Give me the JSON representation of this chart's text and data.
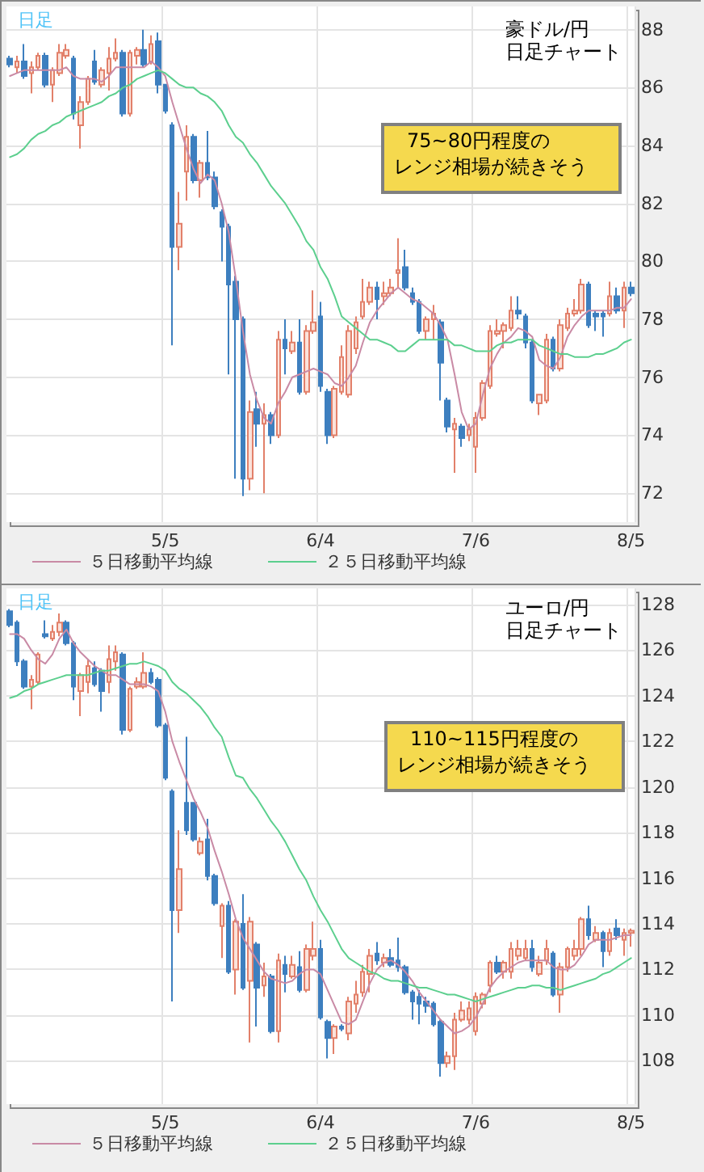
{
  "chart_data": [
    {
      "type": "candlestick",
      "title": "豪ドル/円",
      "subtitle": "日足チャート",
      "annotations": [
        "日足",
        "75~80円程度の",
        "レンジ相場が続きそう"
      ],
      "categories": [
        null,
        null,
        null,
        null,
        null,
        null,
        null,
        null,
        null,
        null,
        null,
        null,
        null,
        null,
        null,
        null,
        null,
        null,
        null,
        null,
        null,
        null,
        "5/5",
        null,
        null,
        null,
        null,
        null,
        null,
        null,
        null,
        null,
        null,
        null,
        null,
        null,
        null,
        null,
        null,
        null,
        null,
        null,
        null,
        null,
        "6/4",
        null,
        null,
        null,
        null,
        null,
        null,
        null,
        null,
        null,
        null,
        null,
        null,
        null,
        null,
        null,
        null,
        null,
        null,
        null,
        null,
        null,
        "7/6",
        null,
        null,
        null,
        null,
        null,
        null,
        null,
        null,
        null,
        null,
        null,
        null,
        null,
        null,
        null,
        null,
        null,
        null,
        null,
        null,
        null,
        "8/5"
      ],
      "ylim": [
        71,
        88.8
      ],
      "yticks": [
        72,
        74,
        76,
        78,
        80,
        82,
        84,
        86,
        88
      ],
      "grid": true,
      "legend": "bottom",
      "marker": "none",
      "series": [
        {
          "type": "candlestick",
          "ohlc": [
            [
              87.0,
              87.1,
              86.7,
              86.8
            ],
            [
              86.7,
              87.1,
              86.5,
              86.9
            ],
            [
              86.9,
              87.5,
              86.3,
              86.4
            ],
            [
              86.5,
              86.9,
              85.8,
              86.7
            ],
            [
              86.7,
              87.2,
              86.6,
              87.1
            ],
            [
              87.1,
              87.2,
              86.0,
              86.1
            ],
            [
              86.1,
              86.7,
              85.5,
              86.6
            ],
            [
              86.5,
              87.5,
              86.4,
              87.2
            ],
            [
              87.1,
              87.5,
              87.0,
              87.3
            ],
            [
              87.0,
              87.1,
              84.9,
              85.1
            ],
            [
              84.7,
              85.7,
              83.9,
              85.5
            ],
            [
              85.5,
              86.4,
              85.4,
              86.3
            ],
            [
              86.9,
              87.3,
              86.1,
              86.2
            ],
            [
              86.1,
              86.7,
              86.0,
              86.6
            ],
            [
              86.5,
              87.4,
              85.9,
              87.0
            ],
            [
              87.0,
              87.7,
              86.9,
              87.2
            ],
            [
              87.2,
              87.3,
              85.0,
              85.1
            ],
            [
              85.1,
              87.3,
              85.0,
              87.2
            ],
            [
              87.1,
              87.4,
              86.8,
              87.3
            ],
            [
              87.3,
              88.0,
              86.7,
              86.8
            ],
            [
              86.9,
              87.8,
              86.8,
              87.5
            ],
            [
              87.6,
              87.9,
              85.8,
              86.1
            ],
            [
              86.1,
              86.1,
              85.1,
              85.2
            ],
            [
              84.7,
              84.8,
              77.1,
              80.5
            ],
            [
              80.5,
              82.4,
              79.7,
              81.3
            ],
            [
              83.1,
              84.7,
              82.1,
              84.3
            ],
            [
              84.3,
              84.4,
              82.7,
              82.8
            ],
            [
              82.8,
              83.5,
              82.2,
              83.4
            ],
            [
              83.4,
              84.5,
              82.8,
              82.9
            ],
            [
              82.9,
              83.1,
              81.8,
              81.9
            ],
            [
              81.7,
              81.8,
              80.0,
              81.2
            ],
            [
              81.2,
              81.3,
              76.1,
              79.2
            ],
            [
              79.3,
              79.5,
              72.5,
              78.0
            ],
            [
              78.0,
              78.1,
              71.9,
              72.5
            ],
            [
              72.5,
              75.2,
              72.1,
              74.8
            ],
            [
              74.9,
              75.5,
              73.6,
              74.4
            ],
            [
              74.4,
              75.1,
              72.0,
              74.7
            ],
            [
              74.7,
              74.8,
              73.7,
              74.0
            ],
            [
              74.0,
              77.6,
              73.9,
              77.3
            ],
            [
              77.3,
              78.0,
              76.1,
              77.0
            ],
            [
              76.9,
              77.6,
              76.8,
              77.2
            ],
            [
              77.2,
              78.0,
              75.4,
              75.5
            ],
            [
              75.5,
              77.8,
              75.4,
              77.6
            ],
            [
              77.6,
              79.0,
              77.5,
              77.9
            ],
            [
              78.1,
              78.6,
              75.5,
              75.7
            ],
            [
              75.5,
              75.6,
              73.7,
              74.0
            ],
            [
              74.0,
              75.7,
              73.9,
              75.6
            ],
            [
              75.5,
              77.1,
              75.4,
              76.7
            ],
            [
              75.4,
              77.8,
              75.3,
              77.6
            ],
            [
              77.0,
              78.1,
              76.8,
              77.9
            ],
            [
              78.1,
              79.4,
              78.0,
              78.6
            ],
            [
              78.6,
              79.3,
              78.5,
              79.1
            ],
            [
              79.1,
              79.3,
              78.0,
              78.7
            ],
            [
              78.8,
              79.3,
              78.5,
              78.9
            ],
            [
              78.9,
              79.4,
              78.8,
              79.1
            ],
            [
              79.6,
              80.8,
              79.1,
              79.7
            ],
            [
              79.8,
              80.4,
              79.0,
              79.1
            ],
            [
              78.9,
              79.1,
              78.5,
              78.6
            ],
            [
              78.6,
              78.7,
              77.5,
              77.6
            ],
            [
              77.6,
              78.1,
              77.3,
              78.0
            ],
            [
              78.0,
              78.5,
              77.3,
              78.2
            ],
            [
              77.9,
              78.0,
              75.2,
              76.5
            ],
            [
              75.2,
              75.3,
              74.1,
              74.3
            ],
            [
              74.2,
              74.6,
              72.7,
              74.4
            ],
            [
              74.3,
              74.4,
              73.6,
              73.9
            ],
            [
              74.0,
              74.4,
              73.8,
              74.2
            ],
            [
              73.6,
              74.8,
              72.7,
              74.6
            ],
            [
              74.6,
              75.9,
              74.5,
              75.8
            ],
            [
              75.7,
              77.8,
              75.6,
              77.6
            ],
            [
              77.5,
              78.0,
              77.4,
              77.6
            ],
            [
              77.6,
              77.9,
              77.0,
              77.8
            ],
            [
              77.7,
              78.8,
              77.6,
              78.3
            ],
            [
              78.3,
              78.8,
              78.0,
              78.2
            ],
            [
              78.1,
              78.2,
              77.0,
              77.2
            ],
            [
              77.2,
              77.3,
              75.1,
              75.2
            ],
            [
              75.1,
              75.4,
              74.7,
              75.4
            ],
            [
              75.2,
              77.5,
              75.1,
              77.3
            ],
            [
              77.3,
              77.4,
              76.2,
              76.3
            ],
            [
              76.3,
              78.0,
              76.2,
              77.8
            ],
            [
              77.7,
              78.4,
              77.6,
              78.2
            ],
            [
              78.2,
              78.7,
              78.1,
              78.3
            ],
            [
              78.3,
              79.4,
              78.2,
              79.2
            ],
            [
              79.2,
              79.3,
              77.7,
              77.8
            ],
            [
              78.2,
              78.3,
              77.6,
              78.1
            ],
            [
              78.2,
              78.3,
              77.4,
              78.1
            ],
            [
              78.2,
              79.3,
              78.1,
              78.8
            ],
            [
              78.8,
              79.1,
              78.2,
              78.3
            ],
            [
              78.3,
              79.3,
              77.7,
              79.1
            ],
            [
              79.1,
              79.3,
              78.8,
              78.9
            ]
          ]
        },
        {
          "type": "line",
          "name": "５日移動平均線",
          "color": "#c98aa5",
          "values": [
            86.4,
            86.5,
            86.6,
            86.6,
            86.6,
            86.6,
            86.6,
            86.6,
            86.7,
            86.4,
            86.3,
            86.3,
            86.3,
            86.2,
            86.4,
            86.7,
            86.7,
            86.7,
            86.7,
            86.7,
            86.9,
            86.7,
            86.4,
            85.5,
            84.7,
            83.9,
            83.2,
            82.7,
            83.0,
            82.8,
            82.0,
            81.0,
            79.4,
            77.6,
            76.1,
            75.2,
            74.6,
            74.4,
            75.1,
            75.5,
            76.0,
            76.1,
            76.2,
            76.3,
            76.2,
            76.1,
            75.8,
            75.7,
            76.0,
            76.4,
            77.2,
            77.9,
            78.3,
            78.6,
            78.9,
            79.1,
            78.9,
            78.7,
            78.6,
            78.4,
            78.2,
            77.8,
            77.3,
            76.1,
            74.8,
            74.2,
            74.4,
            75.4,
            76.3,
            76.8,
            77.2,
            77.4,
            77.7,
            77.6,
            77.4,
            76.6,
            76.4,
            76.3,
            76.7,
            77.4,
            77.8,
            78.1,
            78.3,
            78.3,
            78.3,
            78.3,
            78.4,
            78.4,
            78.7
          ]
        },
        {
          "type": "line",
          "name": "２５日移動平均線",
          "color": "#5ccf8e",
          "values": [
            83.6,
            83.7,
            83.9,
            84.2,
            84.4,
            84.5,
            84.7,
            84.8,
            85.0,
            85.1,
            85.2,
            85.3,
            85.4,
            85.5,
            85.7,
            85.8,
            86.0,
            86.1,
            86.3,
            86.4,
            86.5,
            86.6,
            86.5,
            86.3,
            86.1,
            86.0,
            86.0,
            85.8,
            85.7,
            85.5,
            85.2,
            84.7,
            84.3,
            84.1,
            83.7,
            83.4,
            83.0,
            82.6,
            82.3,
            82.0,
            81.6,
            81.2,
            80.7,
            80.4,
            79.8,
            79.4,
            78.8,
            78.1,
            77.9,
            77.7,
            77.5,
            77.3,
            77.3,
            77.2,
            77.1,
            76.9,
            76.9,
            77.1,
            77.3,
            77.3,
            77.3,
            77.3,
            77.3,
            77.1,
            77.1,
            77.0,
            76.9,
            76.9,
            76.9,
            77.1,
            77.2,
            77.2,
            77.3,
            77.3,
            77.3,
            77.1,
            77.0,
            76.9,
            76.8,
            76.8,
            76.7,
            76.7,
            76.7,
            76.8,
            76.8,
            76.9,
            77.0,
            77.2,
            77.3
          ]
        }
      ]
    },
    {
      "type": "candlestick",
      "title": "ユーロ/円",
      "subtitle": "日足チャート",
      "annotations": [
        "日足",
        "110~115円程度の",
        "レンジ相場が続きそう"
      ],
      "categories": [
        null,
        null,
        null,
        null,
        null,
        null,
        null,
        null,
        null,
        null,
        null,
        null,
        null,
        null,
        null,
        null,
        null,
        null,
        null,
        null,
        null,
        null,
        "5/5",
        null,
        null,
        null,
        null,
        null,
        null,
        null,
        null,
        null,
        null,
        null,
        null,
        null,
        null,
        null,
        null,
        null,
        null,
        null,
        null,
        null,
        "6/4",
        null,
        null,
        null,
        null,
        null,
        null,
        null,
        null,
        null,
        null,
        null,
        null,
        null,
        null,
        null,
        null,
        null,
        null,
        null,
        null,
        null,
        "7/6",
        null,
        null,
        null,
        null,
        null,
        null,
        null,
        null,
        null,
        null,
        null,
        null,
        null,
        null,
        null,
        null,
        null,
        null,
        null,
        null,
        null,
        "8/5"
      ],
      "ylim": [
        106.1,
        128.7
      ],
      "yticks": [
        108,
        110,
        112,
        114,
        116,
        118,
        120,
        122,
        124,
        126,
        128
      ],
      "grid": true,
      "legend": "bottom",
      "marker": "none",
      "series": [
        {
          "type": "candlestick",
          "ohlc": [
            [
              127.7,
              127.8,
              127.0,
              127.1
            ],
            [
              127.2,
              127.3,
              125.3,
              125.5
            ],
            [
              125.5,
              125.6,
              124.3,
              124.4
            ],
            [
              124.4,
              124.9,
              123.4,
              124.7
            ],
            [
              124.6,
              125.9,
              124.5,
              125.8
            ],
            [
              126.7,
              127.3,
              126.5,
              126.6
            ],
            [
              126.5,
              127.1,
              126.4,
              126.8
            ],
            [
              126.8,
              127.6,
              126.6,
              127.2
            ],
            [
              127.2,
              127.3,
              126.2,
              126.3
            ],
            [
              126.3,
              126.4,
              123.8,
              124.4
            ],
            [
              124.2,
              125.0,
              123.1,
              124.9
            ],
            [
              124.6,
              125.6,
              124.1,
              125.3
            ],
            [
              125.2,
              125.5,
              124.4,
              124.5
            ],
            [
              125.1,
              125.2,
              123.3,
              124.2
            ],
            [
              124.6,
              126.2,
              124.1,
              125.6
            ],
            [
              125.5,
              126.2,
              125.1,
              125.9
            ],
            [
              125.8,
              125.9,
              122.3,
              122.5
            ],
            [
              122.5,
              124.4,
              122.4,
              124.3
            ],
            [
              124.4,
              124.8,
              124.3,
              124.6
            ],
            [
              124.4,
              125.9,
              124.3,
              125.0
            ],
            [
              125.0,
              125.2,
              124.5,
              124.6
            ],
            [
              124.7,
              124.8,
              122.6,
              122.7
            ],
            [
              122.7,
              122.8,
              120.3,
              120.4
            ],
            [
              119.8,
              119.9,
              110.6,
              114.6
            ],
            [
              114.6,
              118.1,
              113.6,
              116.4
            ],
            [
              119.3,
              122.2,
              117.9,
              118.1
            ],
            [
              119.3,
              119.3,
              117.6,
              117.7
            ],
            [
              117.1,
              117.8,
              117.0,
              117.6
            ],
            [
              117.7,
              118.6,
              115.9,
              116.1
            ],
            [
              116.1,
              116.2,
              114.8,
              114.9
            ],
            [
              113.9,
              114.9,
              112.5,
              114.8
            ],
            [
              114.8,
              115.0,
              111.8,
              111.9
            ],
            [
              112.0,
              114.2,
              110.9,
              114.1
            ],
            [
              114.0,
              115.3,
              111.1,
              111.2
            ],
            [
              111.5,
              114.3,
              108.8,
              114.1
            ],
            [
              113.1,
              113.2,
              109.5,
              111.2
            ],
            [
              111.3,
              112.3,
              110.8,
              111.7
            ],
            [
              111.7,
              111.8,
              109.2,
              109.3
            ],
            [
              109.3,
              112.7,
              108.8,
              112.4
            ],
            [
              112.2,
              112.6,
              111.0,
              111.8
            ],
            [
              111.7,
              112.6,
              111.6,
              112.2
            ],
            [
              112.1,
              112.8,
              111.0,
              111.1
            ],
            [
              111.1,
              113.1,
              111.0,
              112.9
            ],
            [
              112.6,
              114.1,
              112.4,
              112.9
            ],
            [
              112.9,
              113.3,
              109.8,
              109.9
            ],
            [
              109.7,
              109.8,
              108.1,
              109.0
            ],
            [
              109.0,
              109.6,
              108.3,
              109.5
            ],
            [
              109.5,
              109.6,
              109.3,
              109.4
            ],
            [
              109.2,
              110.8,
              108.9,
              110.6
            ],
            [
              110.5,
              111.5,
              110.1,
              110.9
            ],
            [
              111.0,
              112.2,
              110.8,
              111.9
            ],
            [
              111.8,
              112.9,
              111.0,
              112.6
            ],
            [
              112.7,
              113.2,
              112.2,
              112.4
            ],
            [
              112.3,
              112.7,
              112.1,
              112.5
            ],
            [
              112.5,
              112.9,
              112.1,
              112.2
            ],
            [
              112.4,
              113.4,
              111.9,
              112.1
            ],
            [
              112.1,
              112.2,
              110.9,
              111.0
            ],
            [
              111.0,
              111.1,
              109.8,
              110.6
            ],
            [
              110.8,
              111.1,
              109.6,
              110.5
            ],
            [
              110.6,
              110.8,
              110.1,
              110.4
            ],
            [
              110.5,
              110.6,
              109.5,
              109.6
            ],
            [
              109.7,
              109.8,
              107.3,
              107.9
            ],
            [
              107.9,
              108.4,
              107.7,
              108.2
            ],
            [
              108.2,
              110.1,
              107.6,
              109.8
            ],
            [
              109.8,
              110.6,
              109.7,
              110.2
            ],
            [
              109.8,
              110.6,
              109.6,
              110.3
            ],
            [
              109.3,
              111.0,
              109.1,
              110.8
            ],
            [
              110.5,
              111.0,
              110.3,
              110.9
            ],
            [
              111.3,
              112.4,
              111.0,
              112.3
            ],
            [
              112.3,
              112.6,
              111.8,
              111.9
            ],
            [
              111.9,
              112.4,
              111.6,
              112.3
            ],
            [
              111.9,
              113.2,
              111.6,
              112.9
            ],
            [
              112.6,
              113.3,
              112.4,
              112.9
            ],
            [
              112.5,
              113.3,
              112.4,
              112.9
            ],
            [
              112.9,
              113.3,
              111.9,
              112.1
            ],
            [
              111.8,
              112.6,
              111.7,
              112.3
            ],
            [
              112.4,
              113.3,
              112.2,
              112.9
            ],
            [
              112.7,
              112.8,
              110.8,
              110.9
            ],
            [
              110.9,
              112.3,
              110.1,
              112.1
            ],
            [
              112.1,
              113.0,
              111.9,
              112.9
            ],
            [
              112.6,
              113.3,
              112.4,
              112.9
            ],
            [
              112.9,
              114.3,
              112.6,
              114.2
            ],
            [
              114.2,
              114.8,
              113.3,
              113.5
            ],
            [
              113.3,
              113.9,
              113.2,
              113.6
            ],
            [
              113.6,
              113.7,
              112.1,
              112.8
            ],
            [
              112.8,
              113.8,
              112.6,
              113.6
            ],
            [
              113.8,
              114.2,
              113.3,
              113.5
            ],
            [
              113.3,
              113.8,
              112.6,
              113.6
            ],
            [
              113.6,
              113.8,
              113.0,
              113.7
            ]
          ]
        },
        {
          "type": "line",
          "name": "５日移動平均線",
          "color": "#c98aa5",
          "values": [
            126.7,
            126.7,
            126.5,
            126.0,
            125.6,
            125.4,
            125.8,
            126.5,
            126.9,
            126.3,
            125.9,
            125.6,
            125.3,
            125.1,
            124.9,
            124.9,
            124.7,
            124.5,
            124.5,
            124.5,
            124.4,
            124.2,
            123.3,
            122.0,
            121.1,
            120.3,
            119.5,
            118.9,
            118.2,
            117.2,
            116.3,
            115.3,
            114.2,
            113.4,
            112.9,
            112.4,
            111.9,
            111.6,
            111.5,
            111.4,
            111.5,
            111.8,
            112.0,
            112.0,
            111.8,
            111.1,
            110.4,
            109.7,
            109.6,
            109.8,
            110.6,
            111.4,
            112.0,
            112.3,
            112.4,
            112.2,
            111.9,
            111.5,
            111.0,
            110.6,
            110.2,
            109.8,
            109.5,
            109.2,
            109.3,
            109.5,
            109.9,
            110.5,
            111.2,
            111.6,
            111.9,
            112.1,
            112.3,
            112.4,
            112.4,
            112.4,
            112.4,
            112.1,
            112.0,
            112.0,
            112.2,
            112.6,
            113.1,
            113.3,
            113.3,
            113.3,
            113.4,
            113.5,
            113.5
          ]
        },
        {
          "type": "line",
          "name": "２５日移動平均線",
          "color": "#5ccf8e",
          "values": [
            123.9,
            124.0,
            124.2,
            124.3,
            124.5,
            124.6,
            124.7,
            124.8,
            124.9,
            124.9,
            124.9,
            124.9,
            125.0,
            125.1,
            125.1,
            125.2,
            125.3,
            125.4,
            125.4,
            125.5,
            125.4,
            125.3,
            125.1,
            124.6,
            124.3,
            124.1,
            123.8,
            123.5,
            123.1,
            122.6,
            122.2,
            121.3,
            120.5,
            120.4,
            119.9,
            119.5,
            119.0,
            118.5,
            118.1,
            117.6,
            117.0,
            116.4,
            115.9,
            115.2,
            114.6,
            114.1,
            113.5,
            112.9,
            112.5,
            112.3,
            112.1,
            111.9,
            111.8,
            111.6,
            111.5,
            111.5,
            111.4,
            111.3,
            111.2,
            111.2,
            111.1,
            111.0,
            110.9,
            110.9,
            110.8,
            110.7,
            110.6,
            110.7,
            110.8,
            110.9,
            111.0,
            111.1,
            111.2,
            111.2,
            111.3,
            111.3,
            111.2,
            111.2,
            111.1,
            111.2,
            111.3,
            111.4,
            111.5,
            111.6,
            111.8,
            111.9,
            112.1,
            112.3,
            112.5
          ]
        }
      ]
    }
  ]
}
